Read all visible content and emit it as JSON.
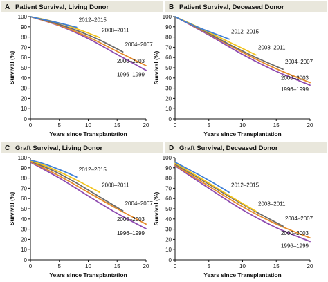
{
  "colors": {
    "1996–1999": "#8e4bb0",
    "2000–2003": "#e58a2a",
    "2004–2007": "#6b6b6b",
    "2008–2011": "#f2c31c",
    "2012–2015": "#3f7fd6"
  },
  "chart_data": [
    {
      "type": "line",
      "letter": "A",
      "title": "Patient Survival, Living Donor",
      "xlabel": "Years since Transplantation",
      "ylabel": "Survival (%)",
      "xlim": [
        0,
        20
      ],
      "ylim": [
        0,
        100
      ],
      "xticks": [
        0,
        5,
        10,
        15,
        20
      ],
      "yticks": [
        0,
        10,
        20,
        30,
        40,
        50,
        60,
        70,
        80,
        90,
        100
      ],
      "series": [
        {
          "name": "2012–2015",
          "x": [
            0,
            2,
            4,
            6,
            8
          ],
          "y": [
            100,
            97.5,
            95,
            92.3,
            89.5
          ]
        },
        {
          "name": "2008–2011",
          "x": [
            0,
            3,
            6,
            9,
            12
          ],
          "y": [
            100,
            96.5,
            92,
            86,
            79.5
          ]
        },
        {
          "name": "2004–2007",
          "x": [
            0,
            4,
            8,
            12,
            16
          ],
          "y": [
            100,
            94,
            86.5,
            77,
            65.5
          ]
        },
        {
          "name": "2000–2003",
          "x": [
            0,
            5,
            10,
            15,
            20
          ],
          "y": [
            100,
            91.5,
            80,
            66,
            52
          ]
        },
        {
          "name": "1996–1999",
          "x": [
            0,
            5,
            10,
            15,
            20
          ],
          "y": [
            100,
            91,
            78.5,
            63,
            47.5
          ]
        }
      ]
    },
    {
      "type": "line",
      "letter": "B",
      "title": "Patient Survival, Deceased Donor",
      "xlabel": "Years since Transplantation",
      "ylabel": "Survival (%)",
      "xlim": [
        0,
        20
      ],
      "ylim": [
        0,
        100
      ],
      "xticks": [
        0,
        5,
        10,
        15,
        20
      ],
      "yticks": [
        0,
        10,
        20,
        30,
        40,
        50,
        60,
        70,
        80,
        90,
        100
      ],
      "series": [
        {
          "name": "2012–2015",
          "x": [
            0,
            2,
            4,
            6,
            8
          ],
          "y": [
            100,
            93.5,
            88,
            83,
            78
          ]
        },
        {
          "name": "2008–2011",
          "x": [
            0,
            3,
            6,
            9,
            12
          ],
          "y": [
            100,
            91,
            81.5,
            72,
            62.5
          ]
        },
        {
          "name": "2004–2007",
          "x": [
            0,
            4,
            8,
            12,
            16
          ],
          "y": [
            100,
            87,
            73,
            60,
            48.5
          ]
        },
        {
          "name": "2000–2003",
          "x": [
            0,
            5,
            10,
            15,
            20
          ],
          "y": [
            100,
            83,
            65,
            49,
            35.5
          ]
        },
        {
          "name": "1996–1999",
          "x": [
            0,
            5,
            10,
            15,
            20
          ],
          "y": [
            100,
            82,
            63,
            46.5,
            33
          ]
        }
      ]
    },
    {
      "type": "line",
      "letter": "C",
      "title": "Graft Survival, Living Donor",
      "xlabel": "Years since Transplantation",
      "ylabel": "Survival (%)",
      "xlim": [
        0,
        20
      ],
      "ylim": [
        0,
        100
      ],
      "xticks": [
        0,
        5,
        10,
        15,
        20
      ],
      "yticks": [
        0,
        10,
        20,
        30,
        40,
        50,
        60,
        70,
        80,
        90,
        100
      ],
      "series": [
        {
          "name": "2012–2015",
          "x": [
            0,
            2,
            4,
            6,
            8
          ],
          "y": [
            97.5,
            94.5,
            90.5,
            86,
            81
          ]
        },
        {
          "name": "2008–2011",
          "x": [
            0,
            3,
            6,
            9,
            12
          ],
          "y": [
            97,
            91,
            83.5,
            75,
            66
          ]
        },
        {
          "name": "2004–2007",
          "x": [
            0,
            4,
            8,
            12,
            16
          ],
          "y": [
            96.5,
            87,
            75,
            61.5,
            48
          ]
        },
        {
          "name": "2000–2003",
          "x": [
            0,
            5,
            10,
            15,
            20
          ],
          "y": [
            96,
            82,
            66,
            50,
            35
          ]
        },
        {
          "name": "1996–1999",
          "x": [
            0,
            5,
            10,
            15,
            20
          ],
          "y": [
            95.5,
            80,
            62.5,
            45.5,
            30.5
          ]
        }
      ]
    },
    {
      "type": "line",
      "letter": "D",
      "title": "Graft Survival, Deceased Donor",
      "xlabel": "Years since Transplantation",
      "ylabel": "Survival (%)",
      "xlim": [
        0,
        20
      ],
      "ylim": [
        0,
        100
      ],
      "xticks": [
        0,
        5,
        10,
        15,
        20
      ],
      "yticks": [
        0,
        10,
        20,
        30,
        40,
        50,
        60,
        70,
        80,
        90,
        100
      ],
      "series": [
        {
          "name": "2012–2015",
          "x": [
            0,
            2,
            4,
            6,
            8
          ],
          "y": [
            95.5,
            88.5,
            81.5,
            74,
            66
          ]
        },
        {
          "name": "2008–2011",
          "x": [
            0,
            3,
            6,
            9,
            12
          ],
          "y": [
            94.5,
            83,
            71,
            59,
            47.5
          ]
        },
        {
          "name": "2004–2007",
          "x": [
            0,
            4,
            8,
            12,
            16
          ],
          "y": [
            93.5,
            78,
            62,
            47,
            33
          ]
        },
        {
          "name": "2000–2003",
          "x": [
            0,
            5,
            10,
            15,
            20
          ],
          "y": [
            92.5,
            72,
            52,
            35,
            21.5
          ]
        },
        {
          "name": "1996–1999",
          "x": [
            0,
            5,
            10,
            15,
            20
          ],
          "y": [
            92,
            70,
            49,
            31.5,
            18
          ]
        }
      ]
    }
  ]
}
